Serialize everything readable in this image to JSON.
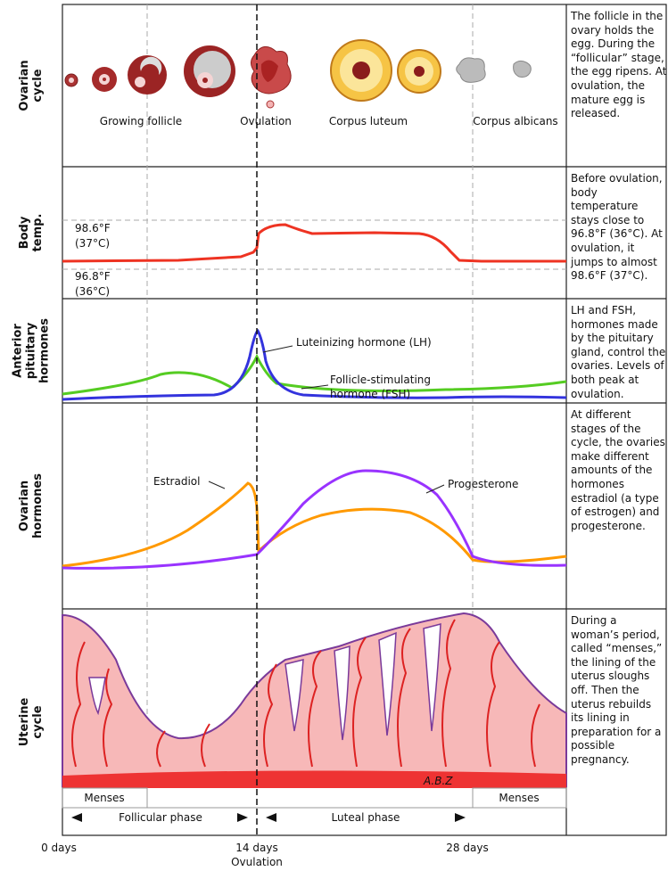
{
  "rows": [
    {
      "label": [
        "Ovarian",
        "cycle"
      ],
      "description": "The follicle in the ovary holds the egg. During the “follicular” stage, the egg ripens. At ovulation, the mature egg is released."
    },
    {
      "label": [
        "Body",
        "temp."
      ],
      "description": "Before ovulation, body temperature stays close to 96.8°F (36°C). At ovulation, it jumps to almost 98.6°F (37°C)."
    },
    {
      "label": [
        "Anterior",
        "pituitary",
        "hormones"
      ],
      "description": "LH and FSH, hormones made by the pituitary gland, control the ovaries. Levels of both peak at ovulation."
    },
    {
      "label": [
        "Ovarian",
        "hormones"
      ],
      "description": "At different stages of the cycle, the ovaries make different amounts of the hormones estradiol (a type of estrogen) and progesterone."
    },
    {
      "label": [
        "Uterine",
        "cycle"
      ],
      "description": "During a woman’s period, called “menses,” the lining of the uterus sloughs off. Then the uterus rebuilds its lining in preparation for a possible pregnancy."
    }
  ],
  "ovarian_stages": [
    "Growing follicle",
    "Ovulation",
    "Corpus luteum",
    "Corpus albicans"
  ],
  "temperature_labels": [
    [
      "98.6°F",
      "(37°C)"
    ],
    [
      "96.8°F",
      "(36°C)"
    ]
  ],
  "pituitary_labels": {
    "lh": "Luteinizing hormone (LH)",
    "fsh": [
      "Follicle-stimulating",
      "hormone (FSH)"
    ]
  },
  "ovarian_hormone_labels": {
    "estradiol": "Estradiol",
    "progesterone": "Progesterone"
  },
  "signature": "A.B.Z",
  "phases": {
    "menses_start": "Menses",
    "follicular": "Follicular phase",
    "luteal": "Luteal phase",
    "menses_end": "Menses"
  },
  "timeline": {
    "start": "0 days",
    "middle": [
      "14 days",
      "Ovulation"
    ],
    "end": "28 days"
  }
}
